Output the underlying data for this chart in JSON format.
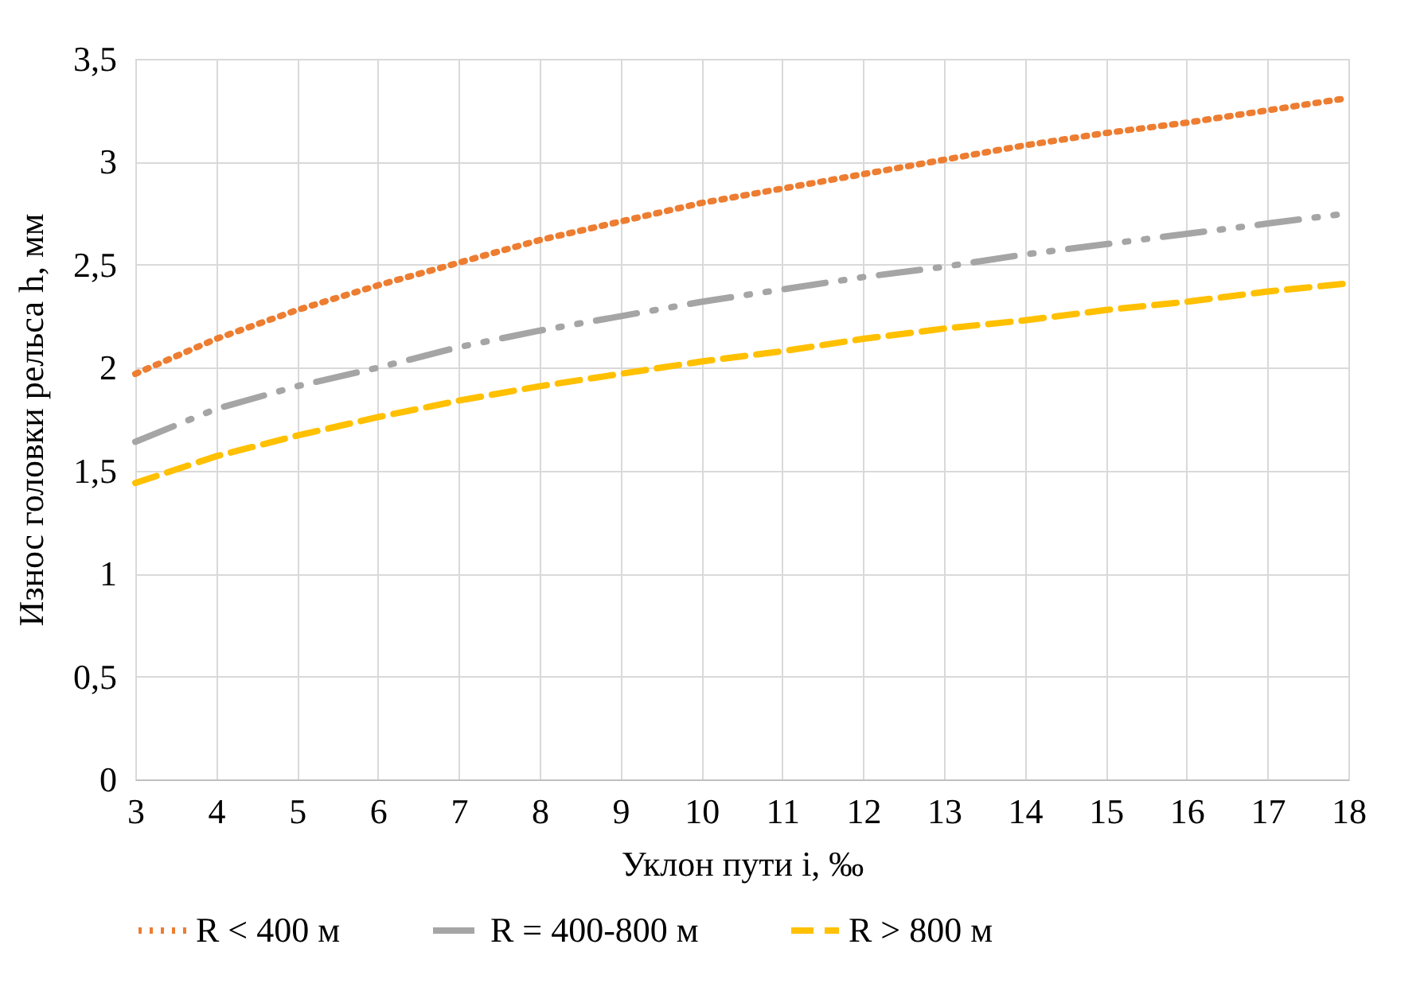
{
  "chart_data": {
    "type": "line",
    "xlabel": "Уклон пути i, ‰",
    "ylabel": "Износ головки рельса h, мм",
    "x": [
      3,
      4,
      5,
      6,
      7,
      8,
      9,
      10,
      11,
      12,
      13,
      14,
      15,
      16,
      17,
      18
    ],
    "series": [
      {
        "name": "R < 400 м",
        "color": "#ed7d31",
        "line_style": "dotted",
        "values": [
          1.97,
          2.14,
          2.28,
          2.4,
          2.51,
          2.62,
          2.71,
          2.8,
          2.87,
          2.94,
          3.01,
          3.08,
          3.14,
          3.19,
          3.25,
          3.31
        ]
      },
      {
        "name": "R = 400-800 м",
        "color": "#a5a5a5",
        "line_style": "dashdot",
        "values": [
          1.64,
          1.8,
          1.91,
          2.0,
          2.1,
          2.18,
          2.25,
          2.32,
          2.38,
          2.44,
          2.49,
          2.55,
          2.6,
          2.65,
          2.7,
          2.75
        ]
      },
      {
        "name": "R > 800 м",
        "color": "#ffc000",
        "line_style": "dashed",
        "values": [
          1.44,
          1.57,
          1.67,
          1.76,
          1.84,
          1.91,
          1.97,
          2.03,
          2.08,
          2.14,
          2.19,
          2.23,
          2.28,
          2.32,
          2.37,
          2.41
        ]
      }
    ],
    "xlim": [
      3,
      18
    ],
    "xticks": [
      3,
      4,
      5,
      6,
      7,
      8,
      9,
      10,
      11,
      12,
      13,
      14,
      15,
      16,
      17,
      18
    ],
    "ylim": [
      0,
      3.5
    ],
    "yticks": [
      0,
      {
        "value": 0.5,
        "label": "0,5"
      },
      1,
      {
        "value": 1.5,
        "label": "1,5"
      },
      2,
      {
        "value": 2.5,
        "label": "2,5"
      },
      3,
      {
        "value": 3.5,
        "label": "3,5"
      }
    ],
    "grid": true,
    "legend": "bottom",
    "marker": "none"
  }
}
